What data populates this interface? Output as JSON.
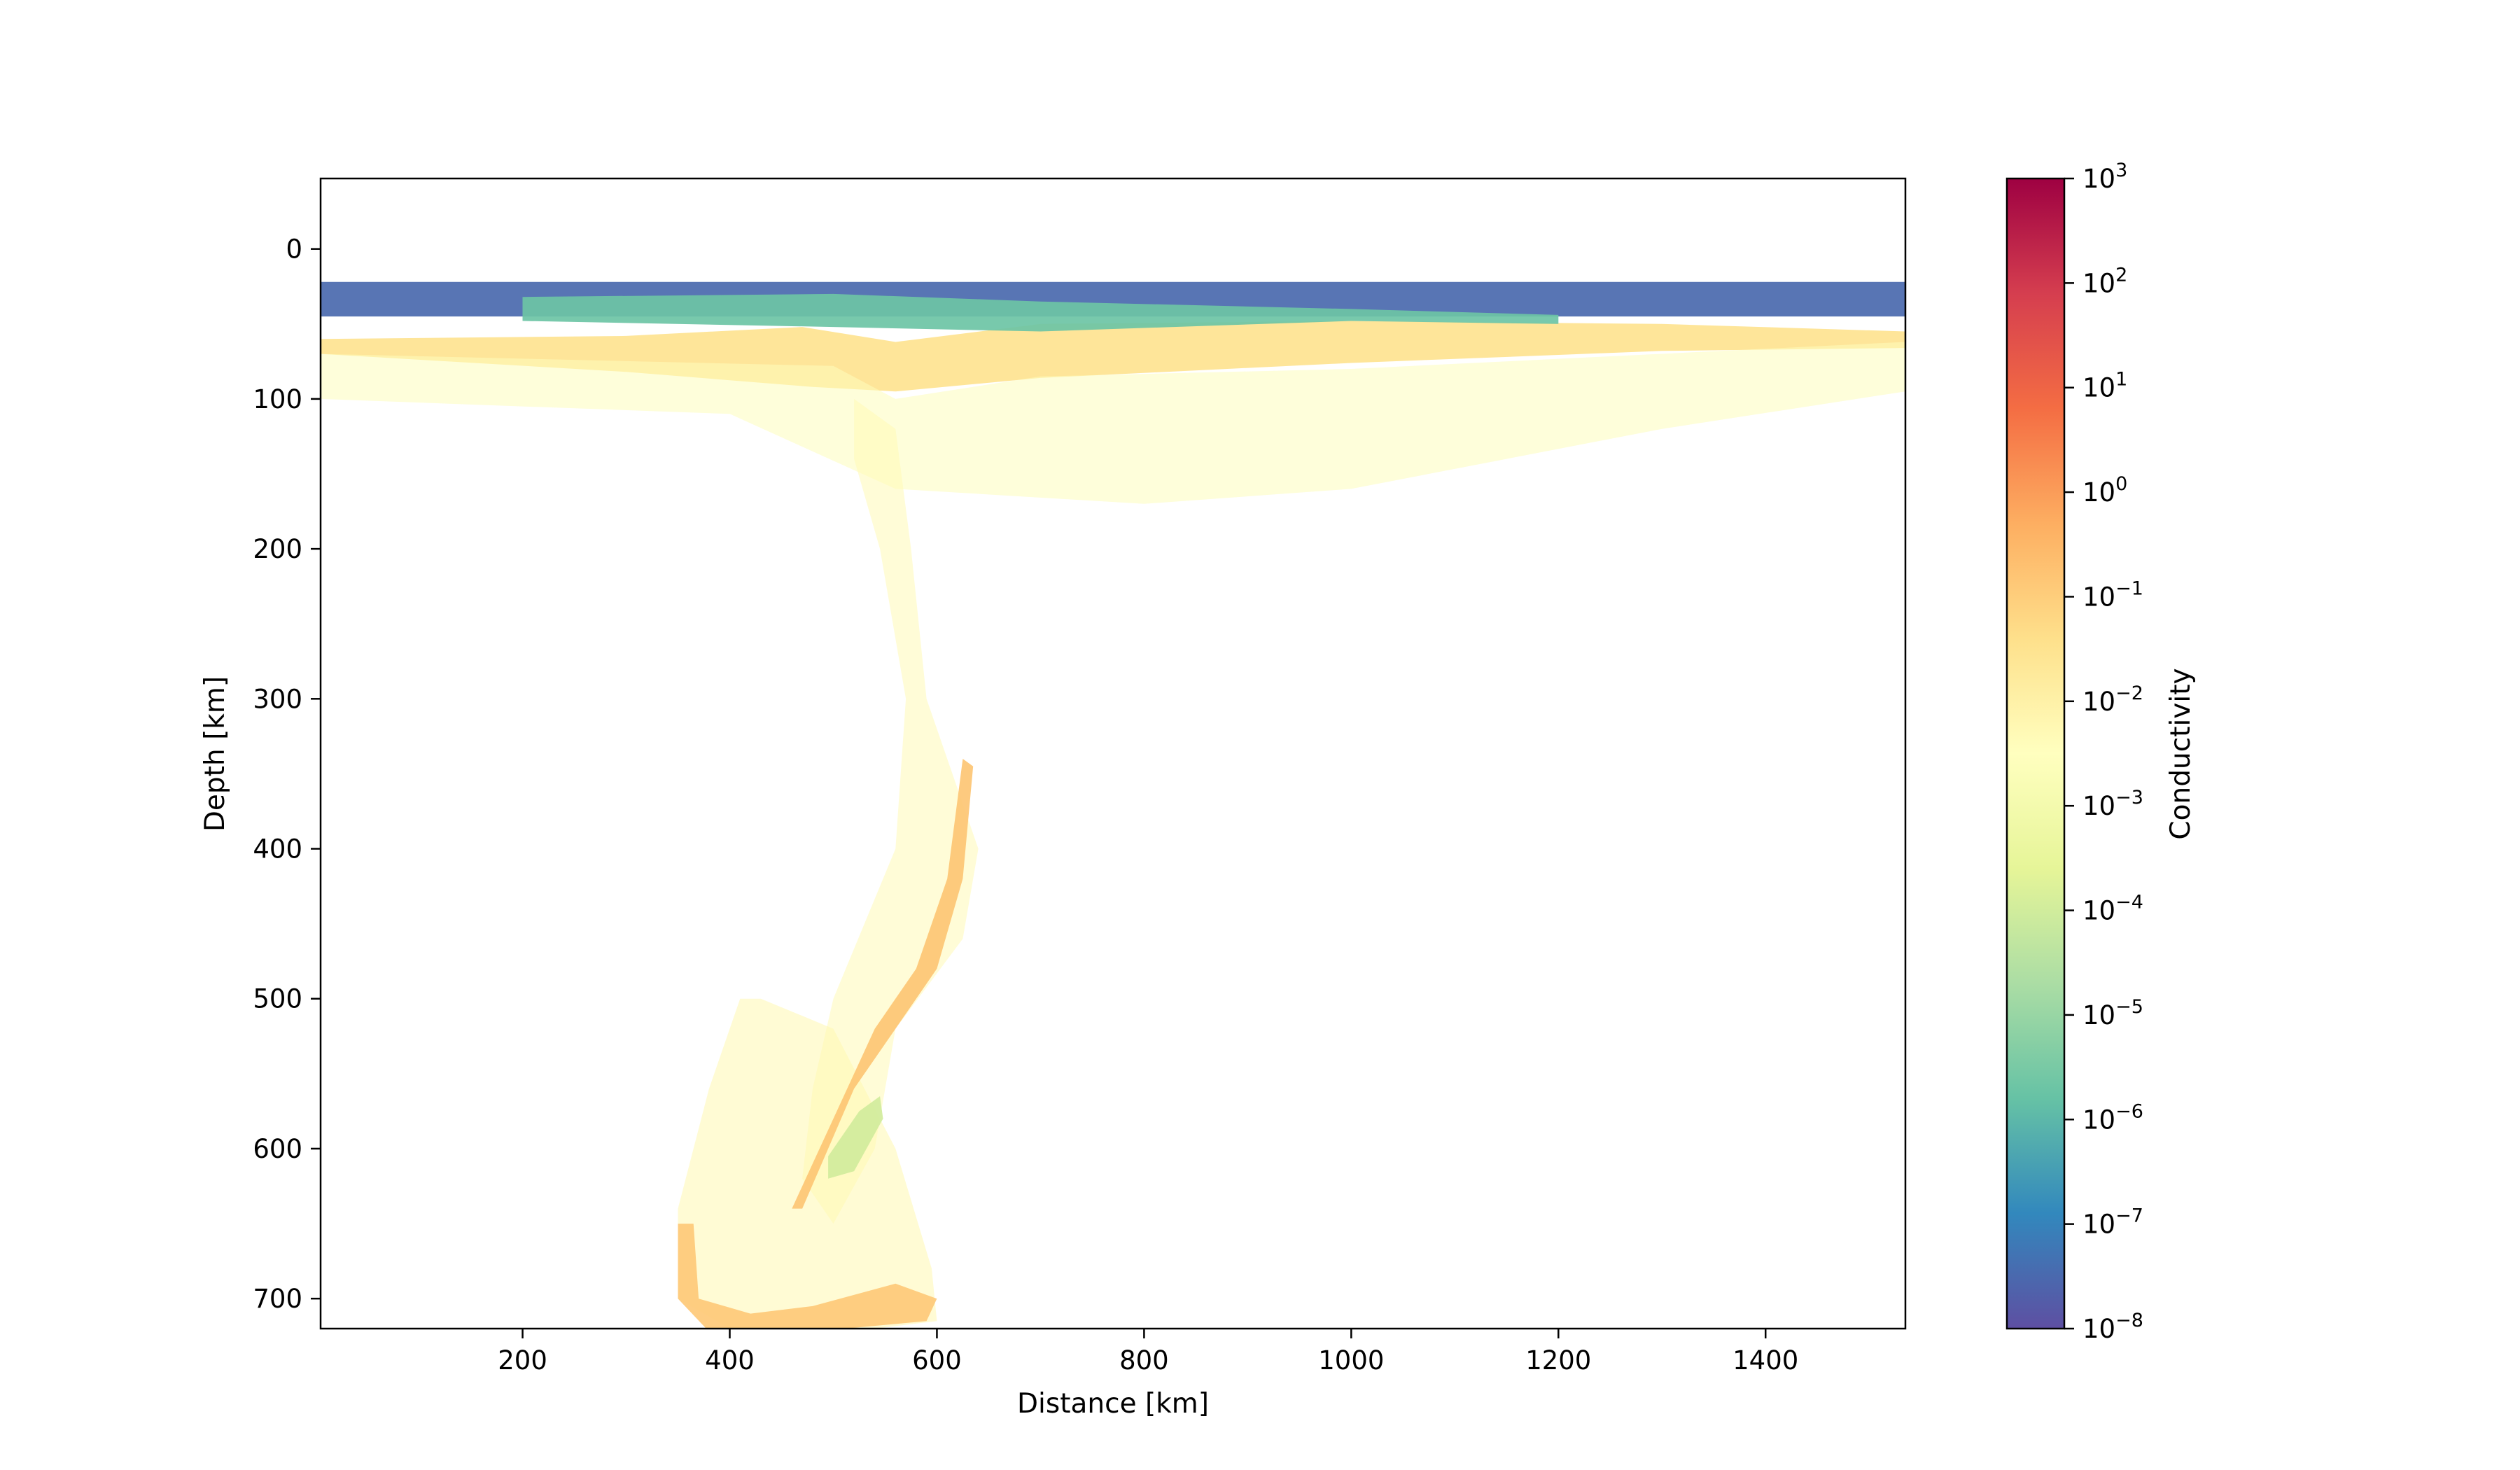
{
  "chart_data": {
    "type": "heatmap",
    "title": "",
    "xlabel": "Distance [km]",
    "ylabel": "Depth [km]",
    "xlim": [
      5,
      1535
    ],
    "ylim": [
      720,
      -47
    ],
    "y_inverted": true,
    "x_ticks": [
      200,
      400,
      600,
      800,
      1000,
      1200,
      1400
    ],
    "y_ticks": [
      0,
      100,
      200,
      300,
      400,
      500,
      600,
      700
    ],
    "x_tick_labels": [
      "200",
      "400",
      "600",
      "800",
      "1000",
      "1200",
      "1400"
    ],
    "y_tick_labels": [
      "0",
      "100",
      "200",
      "300",
      "400",
      "500",
      "600",
      "700"
    ],
    "grid": false,
    "colormap": "Spectral_r",
    "colorbar": {
      "label": "Conductivity",
      "scale": "log",
      "range": [
        1e-08,
        1000
      ],
      "ticks": [
        {
          "base": "10",
          "exp": "−8",
          "value": 1e-08
        },
        {
          "base": "10",
          "exp": "−7",
          "value": 1e-07
        },
        {
          "base": "10",
          "exp": "−6",
          "value": 1e-06
        },
        {
          "base": "10",
          "exp": "−5",
          "value": 1e-05
        },
        {
          "base": "10",
          "exp": "−4",
          "value": 0.0001
        },
        {
          "base": "10",
          "exp": "−3",
          "value": 0.001
        },
        {
          "base": "10",
          "exp": "−2",
          "value": 0.01
        },
        {
          "base": "10",
          "exp": "−1",
          "value": 0.1
        },
        {
          "base": "10",
          "exp": "0",
          "value": 1
        },
        {
          "base": "10",
          "exp": "1",
          "value": 10
        },
        {
          "base": "10",
          "exp": "2",
          "value": 100
        },
        {
          "base": "10",
          "exp": "3",
          "value": 1000
        }
      ]
    },
    "field_regions": [
      {
        "name": "surface-crust",
        "points": [
          [
            5,
            22
          ],
          [
            1535,
            22
          ],
          [
            1535,
            45
          ],
          [
            5,
            45
          ]
        ],
        "log10_conductivity": -7.5
      },
      {
        "name": "lithosphere-band",
        "points": [
          [
            5,
            60
          ],
          [
            300,
            58
          ],
          [
            470,
            52
          ],
          [
            560,
            62
          ],
          [
            700,
            50
          ],
          [
            1000,
            48
          ],
          [
            1300,
            50
          ],
          [
            1535,
            55
          ],
          [
            1535,
            66
          ],
          [
            1300,
            68
          ],
          [
            1000,
            76
          ],
          [
            700,
            86
          ],
          [
            560,
            95
          ],
          [
            480,
            92
          ],
          [
            300,
            82
          ],
          [
            5,
            70
          ]
        ],
        "log10_conductivity": -1.5
      },
      {
        "name": "mid-crust-layer",
        "points": [
          [
            200,
            32
          ],
          [
            500,
            30
          ],
          [
            700,
            35
          ],
          [
            1000,
            40
          ],
          [
            1200,
            44
          ],
          [
            1200,
            50
          ],
          [
            1000,
            48
          ],
          [
            700,
            55
          ],
          [
            500,
            52
          ],
          [
            200,
            48
          ]
        ],
        "log10_conductivity": -5.7
      },
      {
        "name": "upper-mantle-halo",
        "points": [
          [
            5,
            70
          ],
          [
            500,
            78
          ],
          [
            560,
            100
          ],
          [
            700,
            85
          ],
          [
            1000,
            80
          ],
          [
            1535,
            62
          ],
          [
            1535,
            95
          ],
          [
            1300,
            120
          ],
          [
            1000,
            160
          ],
          [
            800,
            170
          ],
          [
            560,
            160
          ],
          [
            400,
            110
          ],
          [
            200,
            105
          ],
          [
            5,
            100
          ]
        ],
        "log10_conductivity": -2.6
      },
      {
        "name": "slab-upper",
        "points": [
          [
            520,
            100
          ],
          [
            560,
            120
          ],
          [
            575,
            200
          ],
          [
            590,
            300
          ],
          [
            610,
            340
          ],
          [
            640,
            400
          ],
          [
            625,
            460
          ],
          [
            560,
            520
          ],
          [
            540,
            600
          ],
          [
            500,
            650
          ],
          [
            470,
            620
          ],
          [
            480,
            560
          ],
          [
            500,
            500
          ],
          [
            560,
            400
          ],
          [
            570,
            300
          ],
          [
            545,
            200
          ],
          [
            520,
            140
          ]
        ],
        "log10_conductivity": -2.3
      },
      {
        "name": "slab-lower",
        "points": [
          [
            430,
            500
          ],
          [
            500,
            520
          ],
          [
            560,
            600
          ],
          [
            595,
            680
          ],
          [
            600,
            715
          ],
          [
            540,
            720
          ],
          [
            400,
            720
          ],
          [
            350,
            700
          ],
          [
            350,
            640
          ],
          [
            380,
            560
          ],
          [
            410,
            500
          ]
        ],
        "log10_conductivity": -2.2
      },
      {
        "name": "slab-hydrous-core",
        "points": [
          [
            470,
            640
          ],
          [
            520,
            560
          ],
          [
            560,
            520
          ],
          [
            600,
            480
          ],
          [
            625,
            420
          ],
          [
            635,
            345
          ],
          [
            625,
            340
          ],
          [
            610,
            420
          ],
          [
            580,
            480
          ],
          [
            540,
            520
          ],
          [
            500,
            580
          ],
          [
            460,
            640
          ]
        ],
        "log10_conductivity": -0.8
      },
      {
        "name": "green-patch",
        "points": [
          [
            495,
            605
          ],
          [
            525,
            575
          ],
          [
            545,
            565
          ],
          [
            548,
            580
          ],
          [
            520,
            615
          ],
          [
            495,
            620
          ]
        ],
        "log10_conductivity": -4.0
      },
      {
        "name": "slab-base-pile",
        "points": [
          [
            350,
            650
          ],
          [
            365,
            650
          ],
          [
            370,
            700
          ],
          [
            420,
            710
          ],
          [
            480,
            705
          ],
          [
            560,
            690
          ],
          [
            600,
            700
          ],
          [
            590,
            715
          ],
          [
            480,
            722
          ],
          [
            380,
            722
          ],
          [
            350,
            700
          ]
        ],
        "log10_conductivity": -0.9
      }
    ],
    "background_log10_conductivity": -2.0
  }
}
